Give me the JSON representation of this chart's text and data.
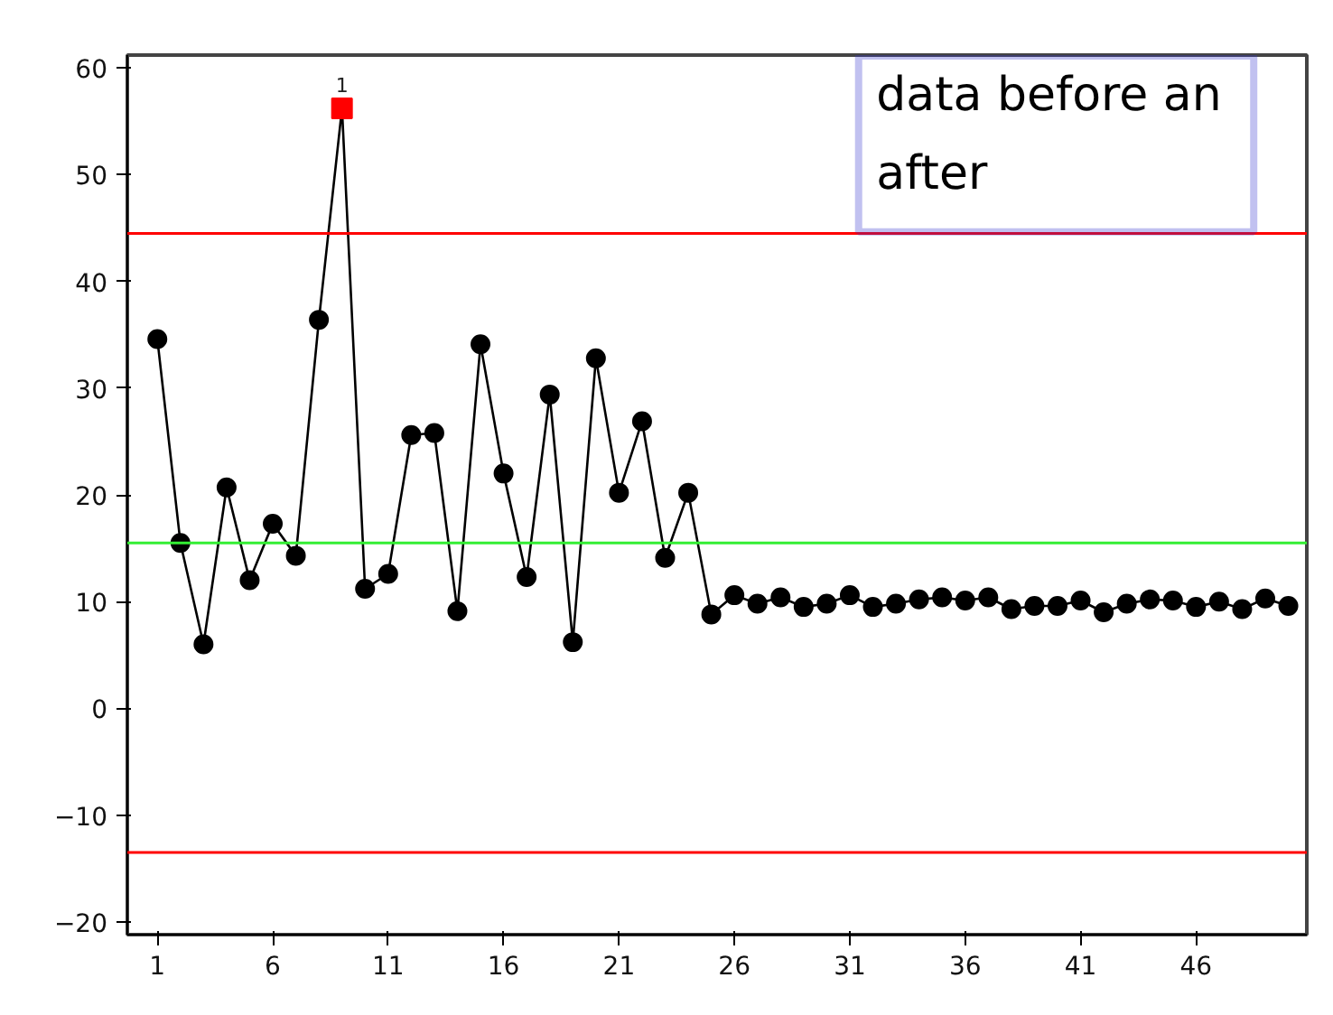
{
  "chart_data": {
    "type": "line",
    "x": [
      1,
      2,
      3,
      4,
      5,
      6,
      7,
      8,
      9,
      10,
      11,
      12,
      13,
      14,
      15,
      16,
      17,
      18,
      19,
      20,
      21,
      22,
      23,
      24,
      25,
      26,
      27,
      28,
      29,
      30,
      31,
      32,
      33,
      34,
      35,
      36,
      37,
      38,
      39,
      40,
      41,
      42,
      43,
      44,
      45,
      46,
      47,
      48,
      49,
      50
    ],
    "series": [
      {
        "color": "#000000",
        "marker": "circle",
        "values": [
          34.6,
          15.5,
          6,
          20.7,
          12,
          17.3,
          14.3,
          36.4,
          56.2,
          11.2,
          12.6,
          25.6,
          25.8,
          9.1,
          34.1,
          22,
          12.3,
          29.4,
          6.2,
          32.8,
          20.2,
          26.9,
          14.1,
          20.2,
          8.8,
          10.6,
          9.8,
          10.4,
          9.5,
          9.8,
          10.6,
          9.5,
          9.8,
          10.2,
          10.4,
          10.1,
          10.4,
          9.3,
          9.6,
          9.6,
          10.1,
          9.0,
          9.8,
          10.2,
          10.1,
          9.5,
          10.0,
          9.3,
          10.3,
          9.6
        ]
      },
      {
        "type": "scatter",
        "color": "#ff0000",
        "marker": "square",
        "x": [
          9
        ],
        "values": [
          56.2
        ]
      }
    ],
    "xlim": [
      -0.3,
      50.8
    ],
    "xticks": [
      1,
      6,
      11,
      16,
      21,
      26,
      31,
      36,
      41,
      46
    ],
    "ylim": [
      -21.2,
      61.2
    ],
    "yticks": [
      -20,
      -10,
      0,
      10,
      20,
      30,
      40,
      50,
      60
    ],
    "grid": false,
    "ref_lines": [
      {
        "axis": "y",
        "value": 44.5,
        "color": "#ff0000"
      },
      {
        "axis": "y",
        "value": 15.5,
        "color": "#33ee33"
      },
      {
        "axis": "y",
        "value": -13.5,
        "color": "#ff0000"
      }
    ],
    "annotations": [
      {
        "text": "1",
        "x": 9,
        "y": 56.2
      },
      "data before an\nafter"
    ]
  }
}
